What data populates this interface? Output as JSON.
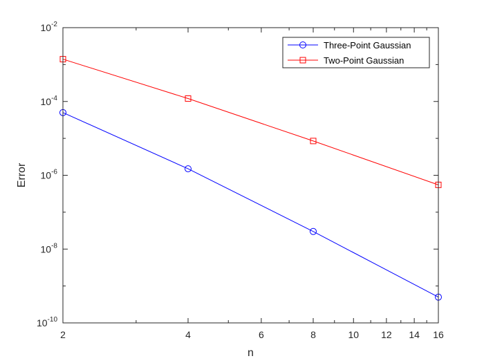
{
  "chart_data": {
    "type": "line",
    "title": "",
    "xlabel": "n",
    "ylabel": "Error",
    "xscale": "log",
    "yscale": "log",
    "xlim": [
      2,
      16
    ],
    "ylim": [
      1e-10,
      0.01
    ],
    "xticks": [
      2,
      4,
      6,
      8,
      10,
      12,
      14,
      16
    ],
    "xtick_labels": [
      "2",
      "4",
      "6",
      "8",
      "10",
      "12",
      "14",
      "16"
    ],
    "yticks": [
      1e-10,
      1e-08,
      1e-06,
      0.0001,
      0.01
    ],
    "ytick_bases": [
      "10",
      "10",
      "10",
      "10",
      "10"
    ],
    "ytick_exponents": [
      "-10",
      "-8",
      "-6",
      "-4",
      "-2"
    ],
    "grid": false,
    "legend_position": "top-right",
    "series": [
      {
        "name": "Three-Point Gaussian",
        "color": "#0000ff",
        "marker": "circle",
        "x": [
          2,
          4,
          8,
          16
        ],
        "y": [
          5e-05,
          1.5e-06,
          3e-08,
          5e-10
        ]
      },
      {
        "name": "Two-Point Gaussian",
        "color": "#ff0000",
        "marker": "square",
        "x": [
          2,
          4,
          8,
          16
        ],
        "y": [
          0.0014,
          0.00012,
          8.5e-06,
          5.5e-07
        ]
      }
    ]
  }
}
